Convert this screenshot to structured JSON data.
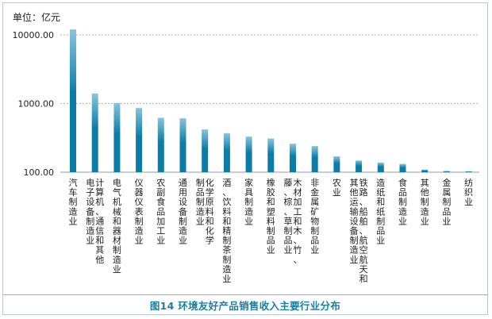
{
  "unit_label": "单位：亿元",
  "caption": "图14  环境友好产品销售收入主要行业分布",
  "colors": {
    "bar_top": "#8ac4dc",
    "bar_bottom": "#0a7ca6",
    "grid": "#999999",
    "axis": "#9a9a9a"
  },
  "chart_data": {
    "type": "bar",
    "title": "",
    "xlabel": "",
    "ylabel": "单位：亿元",
    "yscale": "log",
    "ylim": [
      100,
      20000
    ],
    "yticks": [
      "100.00",
      "1000.00",
      "10000.00"
    ],
    "grid": true,
    "categories": [
      "汽车制造业",
      "计算机、通信和其他电子设备制造业",
      "电气机械和器材制造业",
      "仪器仪表制造业",
      "农副食品加工业",
      "通用设备制造业",
      "化学原料和化学制品制造业",
      "酒、饮料和精制茶制造业",
      "家具制造业",
      "橡胶和塑料制品业",
      "木材加工和木、竹、藤、棕、草制品业",
      "非金属矿物制品业",
      "农业",
      "铁路、船舶、航空航天和其他运输设备制造业",
      "造纸和纸制品业",
      "食品制造业",
      "其他制造业",
      "金属制品业",
      "纺织业"
    ],
    "label_columns": [
      [
        "汽车制造业"
      ],
      [
        "计算机、通信和其他",
        "电子设备制造业"
      ],
      [
        "电气机械和器材制造业"
      ],
      [
        "仪器仪表制造业"
      ],
      [
        "农副食品加工业"
      ],
      [
        "通用设备制造业"
      ],
      [
        "化学原料和化学",
        "制品制造业"
      ],
      [
        "酒、饮料和精制茶制造业"
      ],
      [
        "家具制造业"
      ],
      [
        "橡胶和塑料制品业"
      ],
      [
        "木材加工和木、竹、",
        "藤、棕、草制品业"
      ],
      [
        "非金属矿物制品业"
      ],
      [
        "农业"
      ],
      [
        "铁路、船舶、航空航天和",
        "其他运输设备制造业"
      ],
      [
        "造纸和纸制品业"
      ],
      [
        "食品制造业"
      ],
      [
        "其他制造业"
      ],
      [
        "金属制品业"
      ],
      [
        "纺织业"
      ]
    ],
    "values": [
      12000,
      1400,
      1020,
      860,
      620,
      610,
      420,
      370,
      330,
      310,
      260,
      240,
      170,
      148,
      138,
      132,
      109,
      104,
      103
    ]
  }
}
